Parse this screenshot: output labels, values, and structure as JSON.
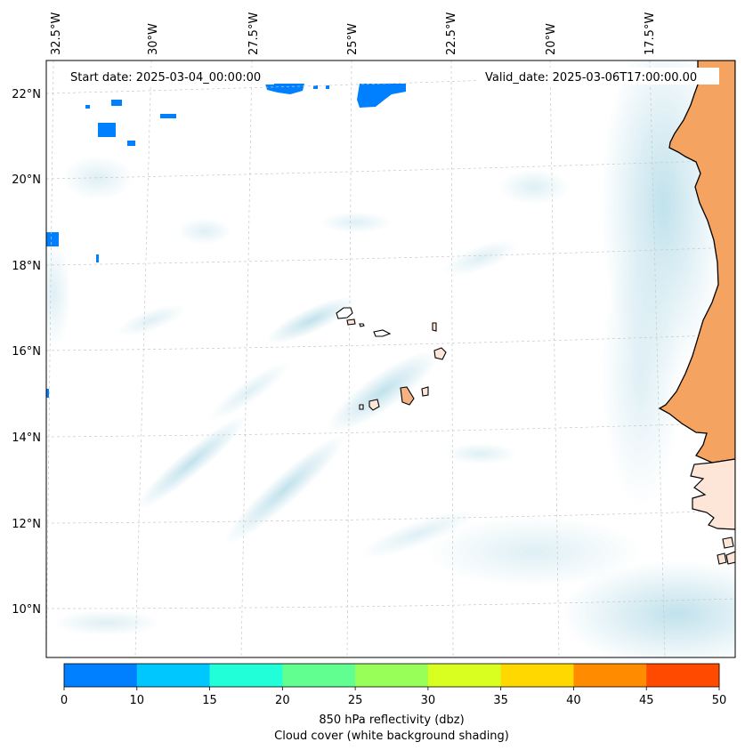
{
  "header": {
    "start_date": "Start date: 2025-03-04_00:00:00",
    "valid_date": "Valid_date: 2025-03-06T17:00:00.00"
  },
  "axes": {
    "longitude_labels": [
      "32.5°W",
      "30°W",
      "27.5°W",
      "25°W",
      "22.5°W",
      "20°W",
      "17.5°W"
    ],
    "latitude_labels": [
      "22°N",
      "20°N",
      "18°N",
      "16°N",
      "14°N",
      "12°N",
      "10°N"
    ]
  },
  "colorbar": {
    "ticks": [
      "0",
      "10",
      "15",
      "20",
      "25",
      "30",
      "35",
      "40",
      "45",
      "50"
    ],
    "colors": [
      "#0080ff",
      "#00c8ff",
      "#20ffd8",
      "#60ff90",
      "#98ff58",
      "#d8ff20",
      "#ffd800",
      "#ff8c00",
      "#ff4a00"
    ],
    "label_line1": "850 hPa reflectivity (dbz)",
    "label_line2": "Cloud cover (white background shading)"
  },
  "colors": {
    "cloud_shading": "#add8e6",
    "land": "#f4a460",
    "reflectivity_min": "#0080ff"
  }
}
